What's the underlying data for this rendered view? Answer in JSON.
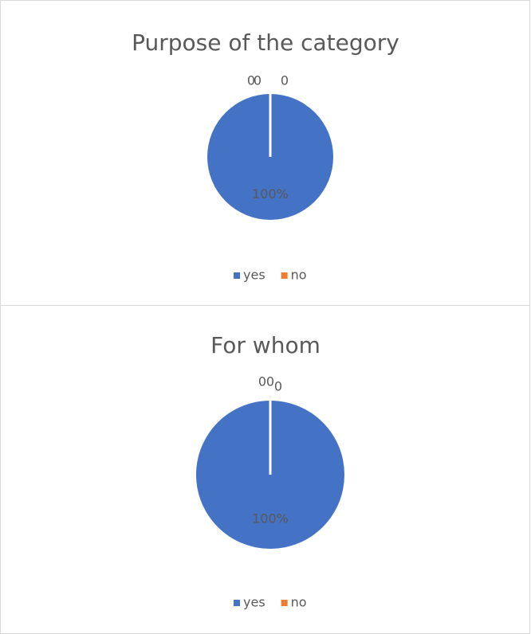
{
  "chart_data": [
    {
      "type": "pie",
      "title": "Purpose of the category",
      "categories": [
        "yes",
        "no",
        null,
        null
      ],
      "values": [
        100,
        0,
        0,
        0
      ],
      "value_labels": [
        "100%",
        "0",
        "0",
        "0"
      ],
      "colors": [
        "#4472c4",
        "#ed7d31",
        "#a5a5a5",
        "#ffc000"
      ],
      "legend": "bottom"
    },
    {
      "type": "pie",
      "title": "For whom",
      "categories": [
        "yes",
        "no",
        null,
        null
      ],
      "values": [
        100,
        0,
        0,
        0
      ],
      "value_labels": [
        "100%",
        "0",
        "0",
        "0"
      ],
      "colors": [
        "#4472c4",
        "#ed7d31",
        "#a5a5a5",
        "#ffc000"
      ],
      "legend": "bottom"
    }
  ]
}
